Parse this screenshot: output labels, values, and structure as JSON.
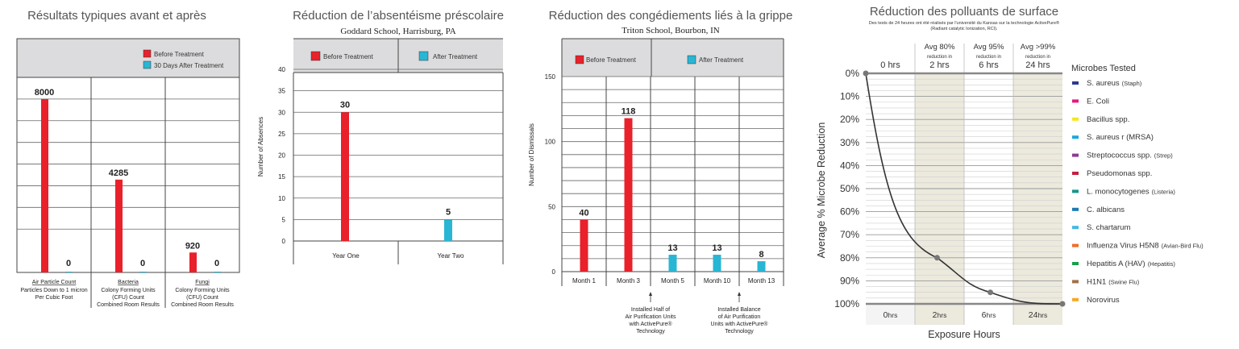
{
  "colors": {
    "before": "#e8212b",
    "after": "#29b6d4",
    "header": "#dcdcde",
    "curve": "#333333",
    "shade": "#ece9dd"
  },
  "chart_data": [
    {
      "type": "bar",
      "title": "Résultats typiques avant et après",
      "legend": [
        "Before Treatment",
        "30 Days After Treatment"
      ],
      "legend_position": "top-right",
      "categories": [
        {
          "name": "Air Particle Count",
          "desc": [
            "Particles Down to 1 micron",
            "Per Cubic Foot"
          ]
        },
        {
          "name": "Bacteria",
          "desc": [
            "Colony Forming Units",
            "(CFU) Count",
            "Combined Room Results"
          ]
        },
        {
          "name": "Fungi",
          "desc": [
            "Colony Forming Units",
            "(CFU) Count",
            "Combined Room Results"
          ]
        }
      ],
      "series": [
        {
          "name": "Before Treatment",
          "values": [
            8000,
            4285,
            920
          ]
        },
        {
          "name": "30 Days After Treatment",
          "values": [
            0,
            0,
            0
          ]
        }
      ],
      "labels": [
        [
          "8000",
          "4285",
          "920"
        ],
        [
          "0",
          "0",
          "0"
        ]
      ],
      "ylim": [
        0,
        8000
      ],
      "grid": true
    },
    {
      "type": "bar",
      "title": "Réduction de l’absentéisme préscolaire",
      "subtitle": "Goddard School, Harrisburg, PA",
      "ylabel": "Number of Absences",
      "yticks": [
        "0",
        "5",
        "10",
        "15",
        "20",
        "25",
        "30",
        "35",
        "40"
      ],
      "ylim": [
        0,
        40
      ],
      "legend": [
        "Before Treatment",
        "After Treatment"
      ],
      "categories": [
        "Year One",
        "Year Two"
      ],
      "series": [
        {
          "name": "Before Treatment",
          "values": [
            30,
            null
          ]
        },
        {
          "name": "After Treatment",
          "values": [
            null,
            5
          ]
        }
      ],
      "labels": [
        "30",
        "5"
      ],
      "grid": true
    },
    {
      "type": "bar",
      "title": "Réduction des congédiements liés à la grippe",
      "subtitle": "Triton School, Bourbon, IN",
      "ylabel": "Number of Dismissals",
      "yticks": [
        "0",
        "50",
        "100",
        "150"
      ],
      "ylim": [
        0,
        150
      ],
      "legend": [
        "Before Treatment",
        "After Treatment"
      ],
      "categories": [
        "Month 1",
        "Month 3",
        "Month 5",
        "Month 10",
        "Month 13"
      ],
      "values": [
        40,
        118,
        13,
        13,
        8
      ],
      "labels": [
        "40",
        "118",
        "13",
        "13",
        "8"
      ],
      "bar_series": [
        "before",
        "before",
        "after",
        "after",
        "after"
      ],
      "annotations": [
        [
          "Installed Half of",
          "Air Purification Units",
          "with ActivePure®",
          "Technology"
        ],
        [
          "Installed Balance",
          "of Air Purification",
          "Units with ActivePure®",
          "Technology"
        ]
      ],
      "grid": true
    },
    {
      "type": "line",
      "title": "Réduction des polluants de surface",
      "subtitle": [
        "Des tests de 24 heures ont été réalisés par l'université du Kansas sur la technologie ActivePure®",
        "(Radiant catalytic Ionization, RCI)."
      ],
      "ylabel": "Average % Microbe Reduction",
      "xlabel": "Exposure Hours",
      "yticks": [
        "0%",
        "10%",
        "20%",
        "30%",
        "40%",
        "50%",
        "60%",
        "70%",
        "80%",
        "90%",
        "100%"
      ],
      "ylim": [
        0,
        100
      ],
      "columns": [
        {
          "top": [
            "",
            "",
            "0 hrs"
          ],
          "bottom": "0",
          "unit": "hrs"
        },
        {
          "top": [
            "Avg 80%",
            "reduction in",
            "2 hrs"
          ],
          "bottom": "2",
          "unit": "hrs"
        },
        {
          "top": [
            "Avg 95%",
            "reduction in",
            "6 hrs"
          ],
          "bottom": "6",
          "unit": "hrs"
        },
        {
          "top": [
            "Avg >99%",
            "reduction in",
            "24 hrs"
          ],
          "bottom": "24",
          "unit": "hrs"
        }
      ],
      "points": [
        {
          "x": 0,
          "y": 0
        },
        {
          "x": 2,
          "y": 80
        },
        {
          "x": 6,
          "y": 95
        },
        {
          "x": 24,
          "y": 100
        }
      ],
      "legend_title": "Microbes Tested",
      "microbes": [
        {
          "name": "S. aureus",
          "note": "(Staph)",
          "color": "#2e3a8c"
        },
        {
          "name": "E. Coli",
          "note": "",
          "color": "#e4197f"
        },
        {
          "name": "Bacillus spp.",
          "note": "",
          "color": "#f5e71c"
        },
        {
          "name": "S. aureus r (MRSA)",
          "note": "",
          "color": "#1aa7de"
        },
        {
          "name": "Streptococcus spp.",
          "note": "(Strep)",
          "color": "#8e3a93"
        },
        {
          "name": "Pseudomonas spp.",
          "note": "",
          "color": "#c3213f"
        },
        {
          "name": "L. monocytogenes",
          "note": "(Listeria)",
          "color": "#16958d"
        },
        {
          "name": "C. albicans",
          "note": "",
          "color": "#1b79b5"
        },
        {
          "name": "S. chartarum",
          "note": "",
          "color": "#43b8e3"
        },
        {
          "name": "Influenza Virus H5N8",
          "note": "(Avian-Bird Flu)",
          "color": "#f26b2b"
        },
        {
          "name": "Hepatitis A (HAV)",
          "note": "(Hepatitis)",
          "color": "#1a9f4b"
        },
        {
          "name": "H1N1",
          "note": "(Swine Flu)",
          "color": "#a0714a"
        },
        {
          "name": "Norovirus",
          "note": "",
          "color": "#f7a823"
        }
      ]
    }
  ]
}
